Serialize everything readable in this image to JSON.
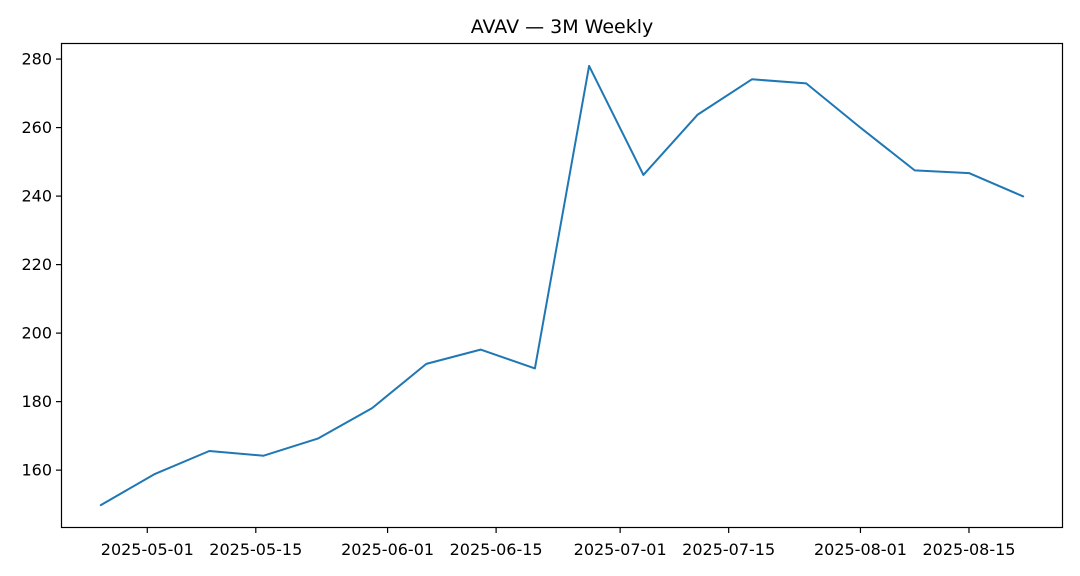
{
  "chart_data": {
    "type": "line",
    "title": "AVAV — 3M Weekly",
    "xlabel": "",
    "ylabel": "",
    "x": [
      "2025-04-25",
      "2025-05-02",
      "2025-05-09",
      "2025-05-16",
      "2025-05-23",
      "2025-05-30",
      "2025-06-06",
      "2025-06-13",
      "2025-06-20",
      "2025-06-27",
      "2025-07-04",
      "2025-07-11",
      "2025-07-18",
      "2025-07-25",
      "2025-08-01",
      "2025-08-08",
      "2025-08-15",
      "2025-08-22"
    ],
    "series": [
      {
        "color": "#1f77b4",
        "values": [
          149.8,
          158.9,
          165.6,
          164.2,
          169.2,
          178.1,
          191.0,
          195.2,
          189.7,
          278.0,
          246.2,
          263.8,
          274.1,
          272.9,
          260.0,
          247.5,
          246.7,
          239.9
        ]
      }
    ],
    "xlim": [
      "2025-04-20",
      "2025-08-27"
    ],
    "ylim": [
      143.4,
      284.4
    ],
    "x_ticks": [
      "2025-05-01",
      "2025-05-15",
      "2025-06-01",
      "2025-06-15",
      "2025-07-01",
      "2025-07-15",
      "2025-08-01",
      "2025-08-15"
    ],
    "y_ticks": [
      160,
      180,
      200,
      220,
      240,
      260,
      280
    ],
    "grid": false,
    "legend": "none"
  }
}
